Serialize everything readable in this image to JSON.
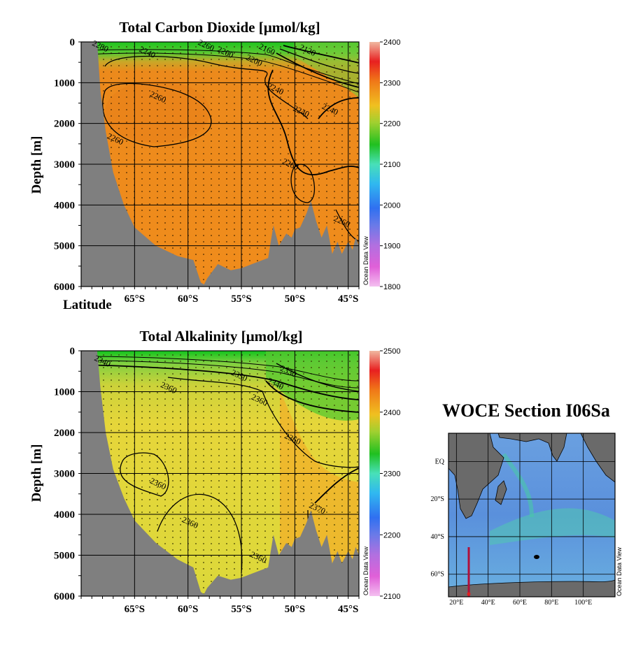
{
  "chart_data": [
    {
      "type": "heatmap",
      "title": "Total Carbon Dioxide [µmol/kg]",
      "xlabel": "Latitude",
      "ylabel": "Depth [m]",
      "x_ticks": [
        "65°S",
        "60°S",
        "55°S",
        "50°S",
        "45°S"
      ],
      "x_tick_values": [
        -65,
        -60,
        -55,
        -50,
        -45
      ],
      "xlim": [
        -70,
        -44
      ],
      "y_ticks": [
        "0",
        "1000",
        "2000",
        "3000",
        "4000",
        "5000",
        "6000"
      ],
      "ylim": [
        0,
        6000
      ],
      "colorbar": {
        "ticks": [
          "2400",
          "2300",
          "2200",
          "2100",
          "2000",
          "1900",
          "1800"
        ],
        "range": [
          1800,
          2400
        ]
      },
      "contour_labels": [
        {
          "text": "2280",
          "lat": -68.2,
          "depth": 100
        },
        {
          "text": "2240",
          "lat": -63.8,
          "depth": 250
        },
        {
          "text": "2260",
          "lat": -58.3,
          "depth": 80
        },
        {
          "text": "2200",
          "lat": -56.5,
          "depth": 250
        },
        {
          "text": "2200",
          "lat": -53.8,
          "depth": 450
        },
        {
          "text": "2160",
          "lat": -52.6,
          "depth": 180
        },
        {
          "text": "2120",
          "lat": -48.8,
          "depth": 200
        },
        {
          "text": "2260",
          "lat": -62.8,
          "depth": 1350
        },
        {
          "text": "2240",
          "lat": -51.8,
          "depth": 1150
        },
        {
          "text": "2240",
          "lat": -49.4,
          "depth": 1700
        },
        {
          "text": "2240",
          "lat": -46.7,
          "depth": 1650
        },
        {
          "text": "2260",
          "lat": -66.8,
          "depth": 2380
        },
        {
          "text": "2260",
          "lat": -50.4,
          "depth": 3000
        },
        {
          "text": "2260",
          "lat": -45.6,
          "depth": 4400
        }
      ],
      "bottom_depth": [
        [
          -68.5,
          0
        ],
        [
          -68.2,
          1200
        ],
        [
          -67.7,
          2200
        ],
        [
          -67.0,
          3200
        ],
        [
          -66.0,
          4000
        ],
        [
          -65.0,
          4550
        ],
        [
          -63.0,
          5000
        ],
        [
          -61.0,
          5250
        ],
        [
          -59.5,
          5350
        ],
        [
          -58.8,
          5900
        ],
        [
          -58.5,
          5950
        ],
        [
          -58.2,
          5800
        ],
        [
          -57.2,
          5450
        ],
        [
          -56.0,
          5600
        ],
        [
          -55.0,
          5550
        ],
        [
          -54.0,
          5450
        ],
        [
          -52.5,
          5300
        ],
        [
          -52.0,
          4500
        ],
        [
          -51.5,
          5000
        ],
        [
          -50.8,
          4700
        ],
        [
          -50.3,
          4800
        ],
        [
          -50.0,
          4600
        ],
        [
          -49.5,
          4550
        ],
        [
          -48.9,
          4200
        ],
        [
          -48.5,
          3900
        ],
        [
          -48.0,
          4400
        ],
        [
          -47.5,
          4800
        ],
        [
          -47.0,
          4500
        ],
        [
          -46.5,
          5200
        ],
        [
          -46.0,
          4900
        ],
        [
          -45.6,
          5200
        ],
        [
          -45.0,
          4900
        ],
        [
          -44.6,
          5100
        ],
        [
          -44.3,
          4800
        ],
        [
          -44.0,
          5000
        ]
      ]
    },
    {
      "type": "heatmap",
      "title": "Total Alkalinity [µmol/kg]",
      "xlabel": "",
      "ylabel": "Depth [m]",
      "x_ticks": [
        "65°S",
        "60°S",
        "55°S",
        "50°S",
        "45°S"
      ],
      "x_tick_values": [
        -65,
        -60,
        -55,
        -50,
        -45
      ],
      "xlim": [
        -70,
        -44
      ],
      "y_ticks": [
        "0",
        "1000",
        "2000",
        "3000",
        "4000",
        "5000",
        "6000"
      ],
      "ylim": [
        0,
        6000
      ],
      "colorbar": {
        "ticks": [
          "2500",
          "2400",
          "2300",
          "2200",
          "2100"
        ],
        "range": [
          2100,
          2500
        ]
      },
      "contour_labels": [
        {
          "text": "2340",
          "lat": -68.0,
          "depth": 250
        },
        {
          "text": "2350",
          "lat": -55.2,
          "depth": 600
        },
        {
          "text": "2360",
          "lat": -61.8,
          "depth": 900
        },
        {
          "text": "2330",
          "lat": -50.6,
          "depth": 500
        },
        {
          "text": "2340",
          "lat": -51.8,
          "depth": 800
        },
        {
          "text": "2360",
          "lat": -53.3,
          "depth": 1200
        },
        {
          "text": "2360",
          "lat": -50.2,
          "depth": 2150
        },
        {
          "text": "2360",
          "lat": -62.8,
          "depth": 3250
        },
        {
          "text": "2360",
          "lat": -59.8,
          "depth": 4200
        },
        {
          "text": "2370",
          "lat": -47.9,
          "depth": 3850
        },
        {
          "text": "2360",
          "lat": -53.4,
          "depth": 5050
        }
      ],
      "bottom_depth": [
        [
          -68.5,
          0
        ],
        [
          -68.2,
          900
        ],
        [
          -67.7,
          2000
        ],
        [
          -67.0,
          2900
        ],
        [
          -66.0,
          3600
        ],
        [
          -65.0,
          4150
        ],
        [
          -63.0,
          4700
        ],
        [
          -61.0,
          5100
        ],
        [
          -59.5,
          5300
        ],
        [
          -58.8,
          5900
        ],
        [
          -58.5,
          5950
        ],
        [
          -58.2,
          5800
        ],
        [
          -57.2,
          5500
        ],
        [
          -56.0,
          5600
        ],
        [
          -55.0,
          5550
        ],
        [
          -54.0,
          5450
        ],
        [
          -52.5,
          5300
        ],
        [
          -52.0,
          4500
        ],
        [
          -51.5,
          5000
        ],
        [
          -50.8,
          4700
        ],
        [
          -50.3,
          4800
        ],
        [
          -50.0,
          4600
        ],
        [
          -49.5,
          4550
        ],
        [
          -48.9,
          4200
        ],
        [
          -48.5,
          3900
        ],
        [
          -48.0,
          4400
        ],
        [
          -47.5,
          4800
        ],
        [
          -47.0,
          4500
        ],
        [
          -46.5,
          5200
        ],
        [
          -46.0,
          4900
        ],
        [
          -45.6,
          5200
        ],
        [
          -45.0,
          4900
        ],
        [
          -44.6,
          5100
        ],
        [
          -44.3,
          4800
        ],
        [
          -44.0,
          5000
        ]
      ]
    }
  ],
  "map": {
    "title": "WOCE Section I06Sa",
    "lat_labels": [
      "EQ",
      "20°S",
      "40°S",
      "60°S"
    ],
    "lon_labels": [
      "20°E",
      "40°E",
      "60°E",
      "80°E",
      "100°E"
    ],
    "section_lon": "30°E",
    "section_lat_range": [
      "44°S",
      "69°S"
    ]
  },
  "watermark": "Ocean Data View",
  "colors": {
    "ocean_orange": "#f08c1c",
    "alk_yellow": "#e8d83a",
    "alk_green": "#3cc23c",
    "land_gray": "#808080",
    "section_line": "#b0103a"
  }
}
